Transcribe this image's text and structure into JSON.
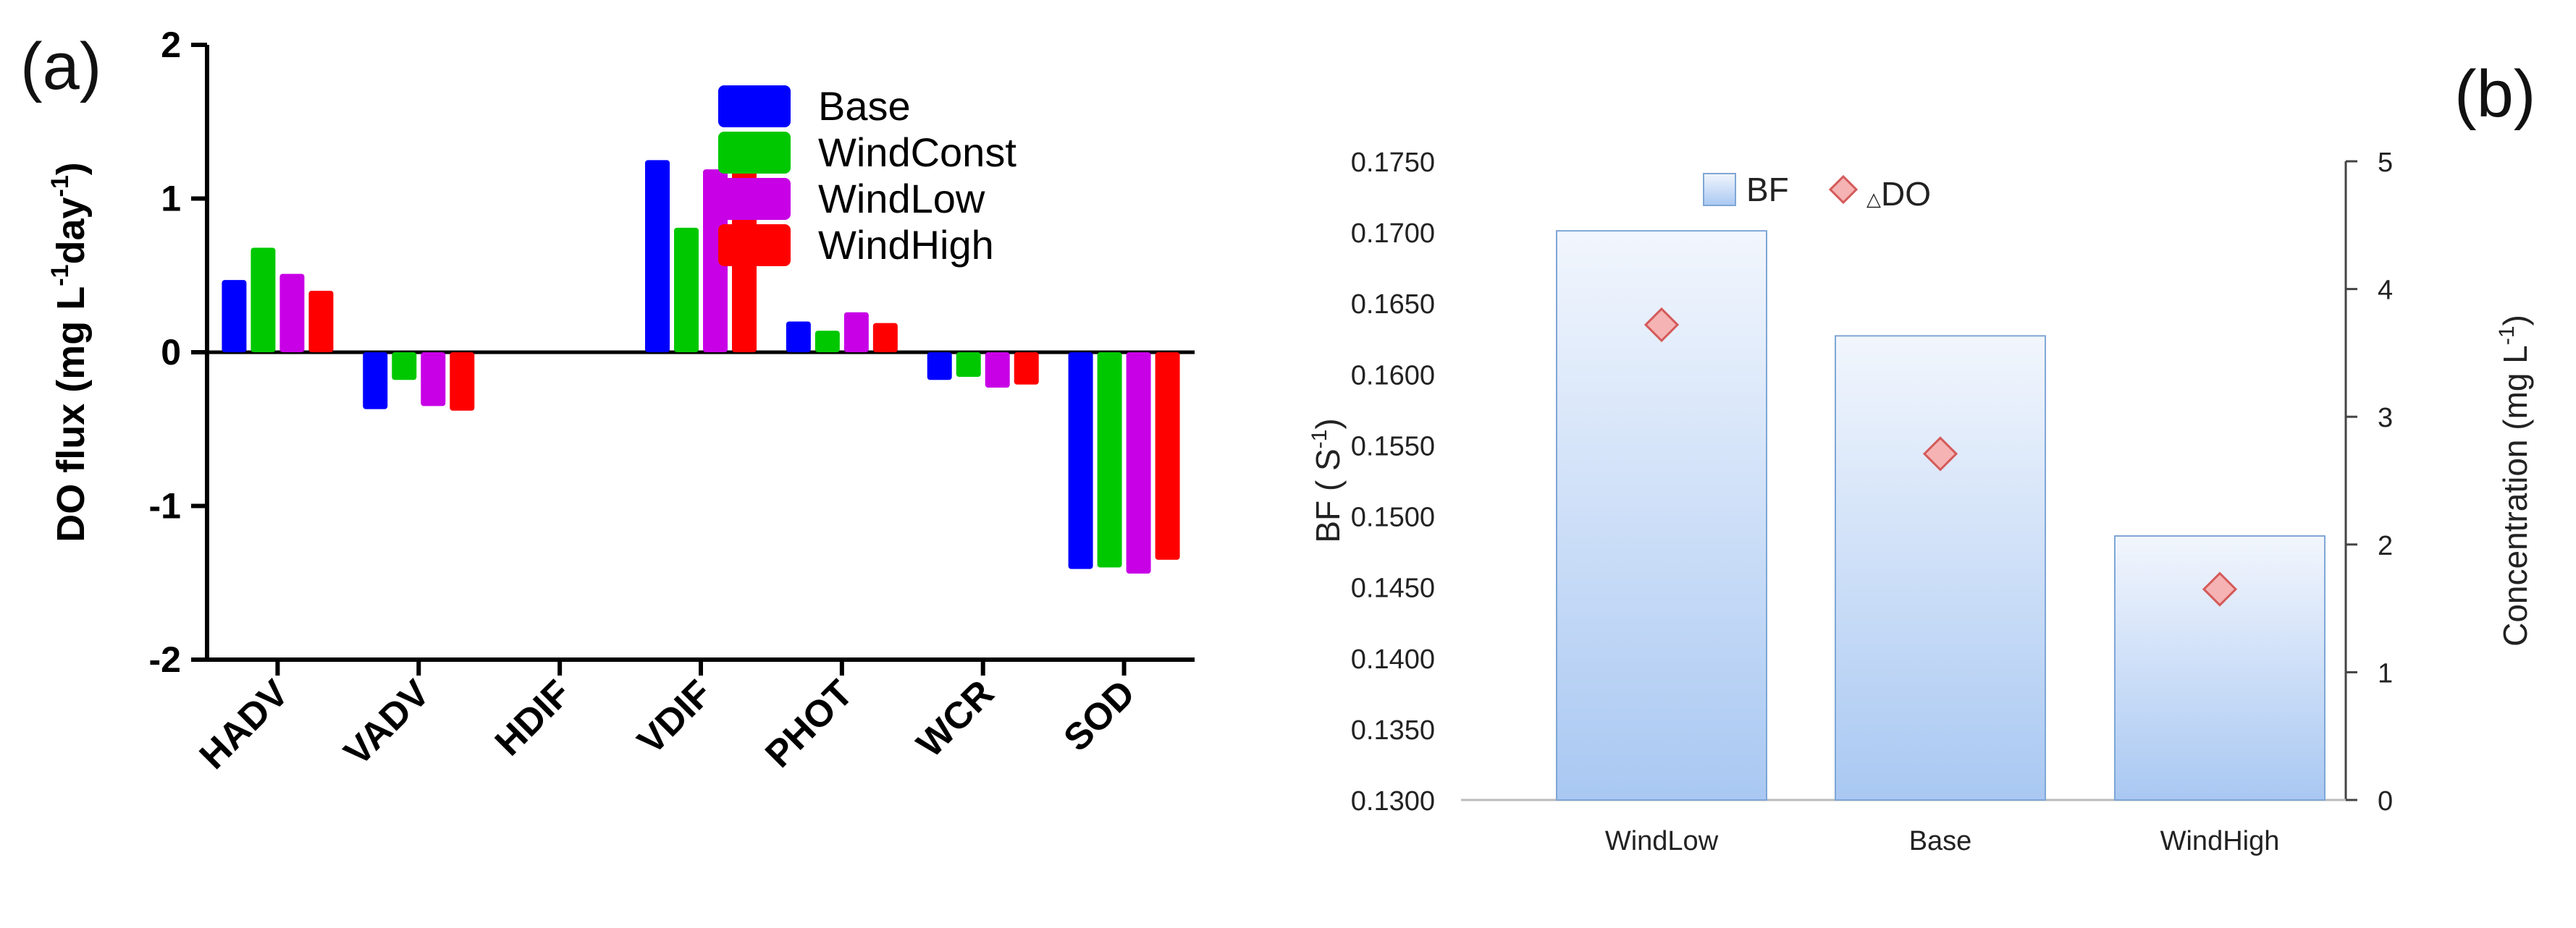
{
  "panel_labels": {
    "a": "(a)",
    "b": "(b)"
  },
  "chart_data": [
    {
      "type": "bar",
      "panel": "(a)",
      "categories": [
        "HADV",
        "VADV",
        "HDIF",
        "VDIF",
        "PHOT",
        "WCR",
        "SOD"
      ],
      "series": [
        {
          "name": "Base",
          "color": "#0000ff",
          "values": [
            0.47,
            -0.37,
            0,
            1.25,
            0.2,
            -0.18,
            -1.41
          ]
        },
        {
          "name": "WindConst",
          "color": "#00c800",
          "values": [
            0.68,
            -0.18,
            0,
            0.81,
            0.14,
            -0.16,
            -1.4
          ]
        },
        {
          "name": "WindLow",
          "color": "#c800e6",
          "values": [
            0.51,
            -0.35,
            0,
            1.19,
            0.26,
            -0.23,
            -1.44
          ]
        },
        {
          "name": "WindHigh",
          "color": "#ff0000",
          "values": [
            0.4,
            -0.38,
            0,
            1.37,
            0.19,
            -0.21,
            -1.35
          ]
        }
      ],
      "ylabel": "DO flux (mg L-1day-1)",
      "ylabel_parts": {
        "a": "DO flux (mg L",
        "sup1": "-1",
        "b": "day",
        "sup2": "-1",
        "c": ")"
      },
      "ylim": [
        -2,
        2
      ],
      "yticks": [
        "2",
        "1",
        "0",
        "-1",
        "-2"
      ],
      "ytick_values": [
        2,
        1,
        0,
        -1,
        -2
      ],
      "grid": false,
      "legend": "top-right"
    },
    {
      "type": "bar",
      "panel": "(b)",
      "categories": [
        "WindLow",
        "Base",
        "WindHigh"
      ],
      "series": [
        {
          "name": "BF",
          "type": "bar",
          "axis": "left",
          "values": [
            0.1701,
            0.1627,
            0.1486
          ]
        },
        {
          "name": "△DO",
          "type": "scatter",
          "axis": "right",
          "marker": "diamond",
          "values": [
            3.72,
            2.71,
            1.65
          ]
        }
      ],
      "ylabel_left": "BF ( S-1)",
      "ylabel_left_parts": {
        "a": "BF ( S",
        "sup": "-1",
        "b": ")"
      },
      "ylabel_right": "Concentration (mg L-1)",
      "ylabel_right_parts": {
        "a": "Concentration (mg L",
        "sup": "-1",
        "b": ")"
      },
      "ylim_left": [
        0.13,
        0.175
      ],
      "ylim_right": [
        0,
        5
      ],
      "yticks_left": [
        "0.1750",
        "0.1700",
        "0.1650",
        "0.1600",
        "0.1550",
        "0.1500",
        "0.1450",
        "0.1400",
        "0.1350",
        "0.1300"
      ],
      "ytick_values_left": [
        0.175,
        0.17,
        0.165,
        0.16,
        0.155,
        0.15,
        0.145,
        0.14,
        0.135,
        0.13
      ],
      "yticks_right": [
        "5",
        "4",
        "3",
        "2",
        "1",
        "0"
      ],
      "ytick_values_right": [
        5,
        4,
        3,
        2,
        1,
        0
      ],
      "legend_labels": {
        "bf": "BF",
        "do_symbol": "△",
        "do_text": "DO"
      },
      "colors": {
        "bar_top": "#f2f6fd",
        "bar_bottom": "#a9c8f2",
        "bar_edge": "#7fa6d6",
        "marker_fill": "#f5b3b3",
        "marker_edge": "#d45a5a"
      },
      "grid": false,
      "legend": "top-center"
    }
  ]
}
